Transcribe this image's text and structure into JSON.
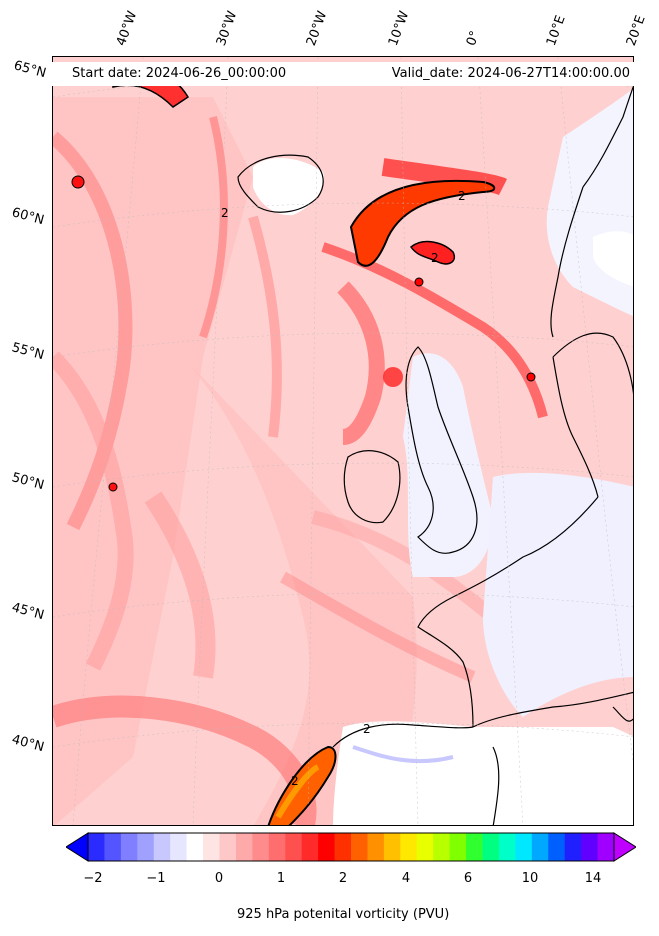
{
  "header": {
    "start_date": "Start date: 2024-06-26_00:00:00",
    "valid_date": "Valid_date: 2024-06-27T14:00:00.00"
  },
  "map": {
    "longitude_labels": [
      "40°W",
      "30°W",
      "20°W",
      "10°W",
      "0°",
      "10°E",
      "20°E"
    ],
    "latitude_labels": [
      "65°N",
      "60°N",
      "55°N",
      "50°N",
      "45°N",
      "40°N"
    ],
    "contour_labels": [
      "2",
      "2",
      "2",
      "2",
      "2"
    ]
  },
  "colorbar": {
    "label": "925 hPa potenital vorticity (PVU)",
    "tick_labels": [
      "−2",
      "−1",
      "0",
      "1",
      "2",
      "4",
      "6",
      "10",
      "14"
    ],
    "colors": [
      "#0000ff",
      "#2b2bff",
      "#5555ff",
      "#7f7fff",
      "#a0a0ff",
      "#c8c8ff",
      "#e6e6ff",
      "#ffffff",
      "#ffe4e4",
      "#ffc8c8",
      "#ffaaaa",
      "#ff8c8c",
      "#ff6e6e",
      "#ff5050",
      "#ff2a2a",
      "#ff0000",
      "#ff3000",
      "#ff6000",
      "#ff9000",
      "#ffc000",
      "#ffe800",
      "#e8ff00",
      "#b8ff00",
      "#80ff00",
      "#30ff30",
      "#00ff80",
      "#00ffc8",
      "#00e8ff",
      "#00a8ff",
      "#0060ff",
      "#2020ff",
      "#6000ff",
      "#a000ff",
      "#c000ff"
    ]
  }
}
